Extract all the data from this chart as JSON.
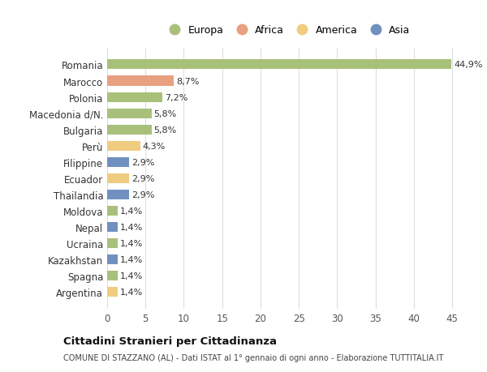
{
  "countries": [
    "Romania",
    "Marocco",
    "Polonia",
    "Macedonia d/N.",
    "Bulgaria",
    "Perù",
    "Filippine",
    "Ecuador",
    "Thailandia",
    "Moldova",
    "Nepal",
    "Ucraina",
    "Kazakhstan",
    "Spagna",
    "Argentina"
  ],
  "values": [
    44.9,
    8.7,
    7.2,
    5.8,
    5.8,
    4.3,
    2.9,
    2.9,
    2.9,
    1.4,
    1.4,
    1.4,
    1.4,
    1.4,
    1.4
  ],
  "labels": [
    "44,9%",
    "8,7%",
    "7,2%",
    "5,8%",
    "5,8%",
    "4,3%",
    "2,9%",
    "2,9%",
    "2,9%",
    "1,4%",
    "1,4%",
    "1,4%",
    "1,4%",
    "1,4%",
    "1,4%"
  ],
  "continents": [
    "Europa",
    "Africa",
    "Europa",
    "Europa",
    "Europa",
    "America",
    "Asia",
    "America",
    "Asia",
    "Europa",
    "Asia",
    "Europa",
    "Asia",
    "Europa",
    "America"
  ],
  "colors": {
    "Europa": "#a8c07a",
    "Africa": "#e8a080",
    "America": "#f0cc80",
    "Asia": "#7090c0"
  },
  "legend_order": [
    "Europa",
    "Africa",
    "America",
    "Asia"
  ],
  "title": "Cittadini Stranieri per Cittadinanza",
  "subtitle": "COMUNE DI STAZZANO (AL) - Dati ISTAT al 1° gennaio di ogni anno - Elaborazione TUTTITALIA.IT",
  "xlim": [
    0,
    47
  ],
  "xticks": [
    0,
    5,
    10,
    15,
    20,
    25,
    30,
    35,
    40,
    45
  ],
  "bg_color": "#ffffff",
  "grid_color": "#dddddd"
}
